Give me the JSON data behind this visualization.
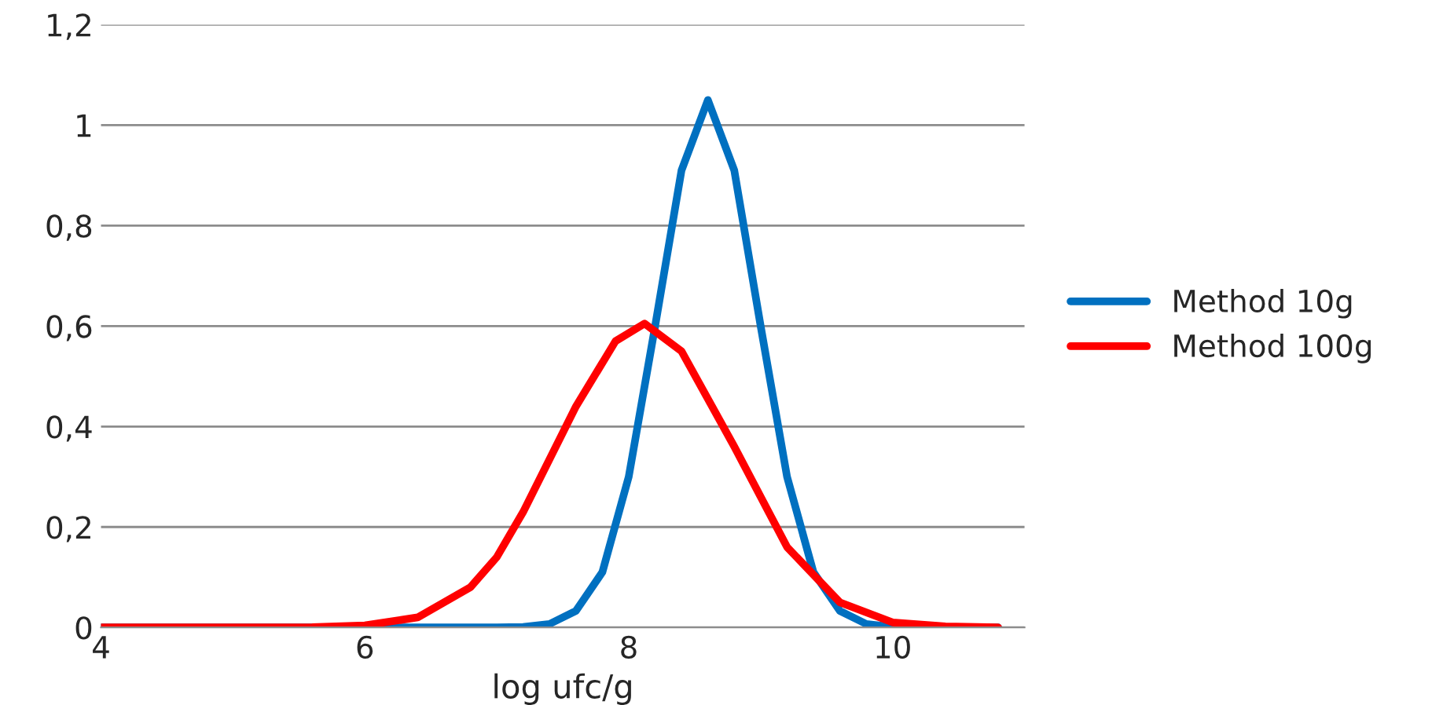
{
  "chart_data": {
    "type": "line",
    "xlabel": "log ufc/g",
    "xlim": [
      4,
      11
    ],
    "xticks": [
      4,
      6,
      8,
      10
    ],
    "ylim": [
      0,
      1.2
    ],
    "yticks": [
      {
        "value": 0,
        "label": "0"
      },
      {
        "value": 0.2,
        "label": "0,2"
      },
      {
        "value": 0.4,
        "label": "0,4"
      },
      {
        "value": 0.6,
        "label": "0,6"
      },
      {
        "value": 0.8,
        "label": "0,8"
      },
      {
        "value": 1,
        "label": "1"
      },
      {
        "value": 1.2,
        "label": "1,2"
      }
    ],
    "grid": "y",
    "legend": "right",
    "line_style": "solid",
    "marker": "none",
    "series": [
      {
        "name": "Method 10g",
        "color": "#0070c0",
        "x": [
          4,
          7.0,
          7.2,
          7.4,
          7.6,
          7.8,
          8.0,
          8.2,
          8.4,
          8.6,
          8.8,
          9.0,
          9.2,
          9.4,
          9.6,
          9.8,
          10.0,
          10.2,
          10.8
        ],
        "values": [
          0,
          0,
          0.001,
          0.007,
          0.033,
          0.11,
          0.3,
          0.6,
          0.91,
          1.05,
          0.91,
          0.6,
          0.3,
          0.11,
          0.033,
          0.007,
          0.001,
          0,
          0
        ]
      },
      {
        "name": "Method 100g",
        "color": "#ff0000",
        "x": [
          4,
          5.2,
          5.6,
          6.0,
          6.4,
          6.8,
          7.0,
          7.2,
          7.6,
          7.9,
          8.12,
          8.4,
          8.8,
          9.2,
          9.6,
          10.0,
          10.4,
          10.8
        ],
        "values": [
          0,
          0,
          0.0004,
          0.004,
          0.02,
          0.08,
          0.14,
          0.23,
          0.44,
          0.57,
          0.605,
          0.55,
          0.36,
          0.16,
          0.05,
          0.01,
          0.002,
          0
        ]
      }
    ]
  }
}
